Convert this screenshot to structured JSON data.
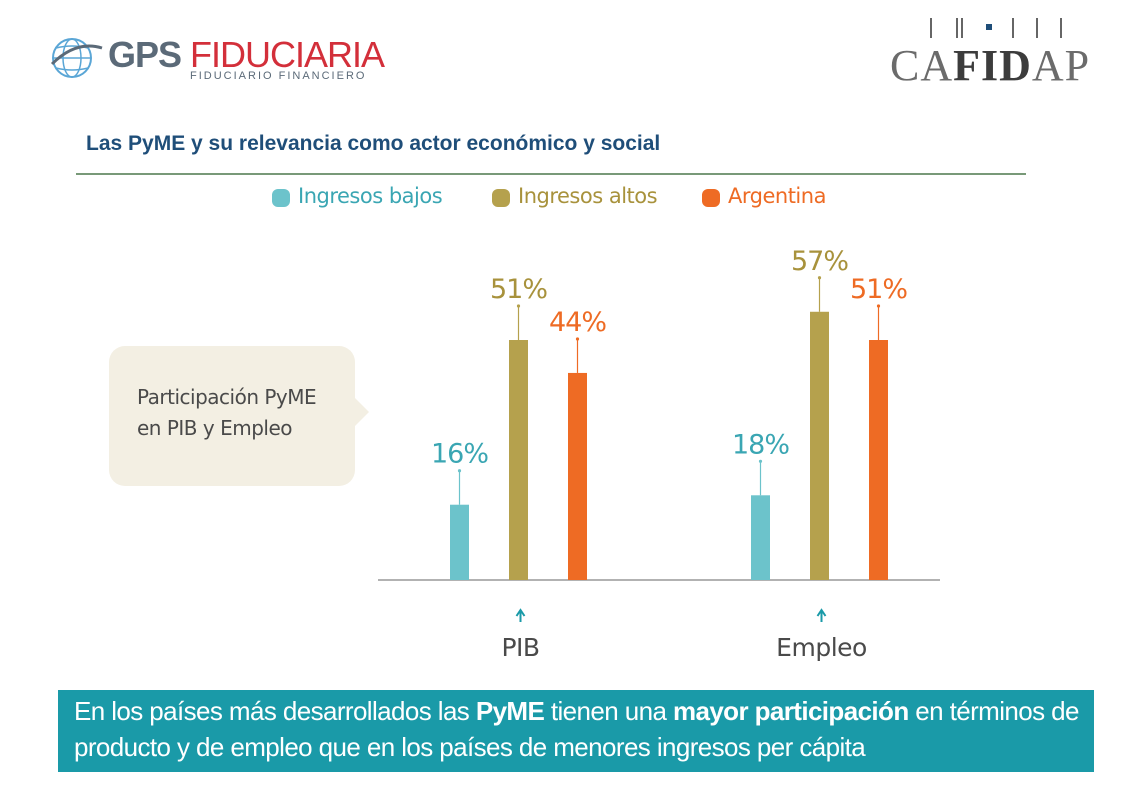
{
  "header": {
    "logo_left_brand": "GPS",
    "logo_left_name": "FIDUCIARIA",
    "logo_left_sub": "FIDUCIARIO FINANCIERO",
    "logo_right_pre": "CA",
    "logo_right_mid": "FID",
    "logo_right_post": "AP"
  },
  "page_title": "Las PyME y su relevancia como actor económico y social",
  "callout": {
    "line1": "Participación PyME",
    "line2": "en PIB y Empleo"
  },
  "colors": {
    "ingresos_bajos": "#6cc3cb",
    "ingresos_altos": "#b5a14d",
    "argentina": "#ee6b24",
    "title": "#1f4e79",
    "banner": "#1a9aa8",
    "callout_bg": "#f3efe3"
  },
  "chart_data": {
    "type": "bar",
    "categories": [
      "PIB",
      "Empleo"
    ],
    "series": [
      {
        "name": "Ingresos bajos",
        "values": [
          16,
          18
        ],
        "labels": [
          "16%",
          "18%"
        ],
        "color": "#6cc3cb"
      },
      {
        "name": "Ingresos altos",
        "values": [
          51,
          57
        ],
        "labels": [
          "51%",
          "57%"
        ],
        "color": "#b5a14d"
      },
      {
        "name": "Argentina",
        "values": [
          44,
          51
        ],
        "labels": [
          "44%",
          "51%"
        ],
        "color": "#ee6b24"
      }
    ],
    "ylim": [
      0,
      60
    ],
    "legend_position": "top"
  },
  "banner": {
    "part1": "En los países más desarrollados las ",
    "bold1": "PyME",
    "part2": " tienen una ",
    "bold2": "mayor participación",
    "part3": " en términos de producto y de empleo que en los países de menores ingresos per cápita"
  }
}
